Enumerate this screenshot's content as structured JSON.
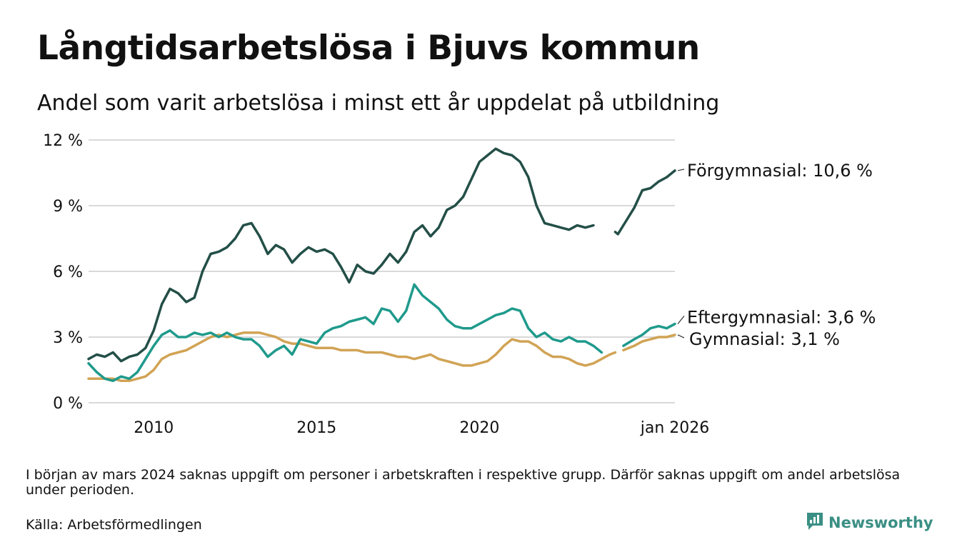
{
  "title": "Långtidsarbetslösa i Bjuvs kommun",
  "subtitle": "Andel som varit arbetslösa i minst ett år uppdelat på utbildning",
  "footnote": "I början av mars 2024 saknas uppgift om personer i arbetskraften i respektive grupp. Därför saknas uppgift om andel arbetslösa under perioden.",
  "source": "Källa: Arbetsförmedlingen",
  "brand": "Newsworthy",
  "colors": {
    "forgymnasial": "#234f47",
    "eftergymnasial": "#1f9a8c",
    "gymnasial": "#d1a354",
    "grid": "#d9d9d9",
    "brand": "#3a8f84"
  },
  "chart_data": {
    "type": "line",
    "title": "Långtidsarbetslösa i Bjuvs kommun",
    "xlabel": "",
    "ylabel": "",
    "xlim": [
      2008.0,
      2026.0
    ],
    "ylim": [
      0,
      12
    ],
    "y_ticks": [
      0,
      3,
      6,
      9,
      12
    ],
    "y_tick_labels": [
      "0 %",
      "3 %",
      "6 %",
      "9 %",
      "12 %"
    ],
    "x_ticks": [
      2010,
      2015,
      2020,
      2026.0
    ],
    "x_tick_labels": [
      "2010",
      "2015",
      "2020",
      "jan 2026"
    ],
    "gap": [
      2024.17,
      2024.42
    ],
    "series": [
      {
        "name": "Förgymnasial",
        "end_label": "Förgymnasial: 10,6 %",
        "color_key": "forgymnasial",
        "points": [
          [
            2008.0,
            2.0
          ],
          [
            2008.25,
            2.2
          ],
          [
            2008.5,
            2.1
          ],
          [
            2008.75,
            2.3
          ],
          [
            2009.0,
            1.9
          ],
          [
            2009.25,
            2.1
          ],
          [
            2009.5,
            2.2
          ],
          [
            2009.75,
            2.5
          ],
          [
            2010.0,
            3.3
          ],
          [
            2010.25,
            4.5
          ],
          [
            2010.5,
            5.2
          ],
          [
            2010.75,
            5.0
          ],
          [
            2011.0,
            4.6
          ],
          [
            2011.25,
            4.8
          ],
          [
            2011.5,
            6.0
          ],
          [
            2011.75,
            6.8
          ],
          [
            2012.0,
            6.9
          ],
          [
            2012.25,
            7.1
          ],
          [
            2012.5,
            7.5
          ],
          [
            2012.75,
            8.1
          ],
          [
            2013.0,
            8.2
          ],
          [
            2013.25,
            7.6
          ],
          [
            2013.5,
            6.8
          ],
          [
            2013.75,
            7.2
          ],
          [
            2014.0,
            7.0
          ],
          [
            2014.25,
            6.4
          ],
          [
            2014.5,
            6.8
          ],
          [
            2014.75,
            7.1
          ],
          [
            2015.0,
            6.9
          ],
          [
            2015.25,
            7.0
          ],
          [
            2015.5,
            6.8
          ],
          [
            2015.75,
            6.2
          ],
          [
            2016.0,
            5.5
          ],
          [
            2016.25,
            6.3
          ],
          [
            2016.5,
            6.0
          ],
          [
            2016.75,
            5.9
          ],
          [
            2017.0,
            6.3
          ],
          [
            2017.25,
            6.8
          ],
          [
            2017.5,
            6.4
          ],
          [
            2017.75,
            6.9
          ],
          [
            2018.0,
            7.8
          ],
          [
            2018.25,
            8.1
          ],
          [
            2018.5,
            7.6
          ],
          [
            2018.75,
            8.0
          ],
          [
            2019.0,
            8.8
          ],
          [
            2019.25,
            9.0
          ],
          [
            2019.5,
            9.4
          ],
          [
            2019.75,
            10.2
          ],
          [
            2020.0,
            11.0
          ],
          [
            2020.25,
            11.3
          ],
          [
            2020.5,
            11.6
          ],
          [
            2020.75,
            11.4
          ],
          [
            2021.0,
            11.3
          ],
          [
            2021.25,
            11.0
          ],
          [
            2021.5,
            10.3
          ],
          [
            2021.75,
            9.0
          ],
          [
            2022.0,
            8.2
          ],
          [
            2022.25,
            8.1
          ],
          [
            2022.5,
            8.0
          ],
          [
            2022.75,
            7.9
          ],
          [
            2023.0,
            8.1
          ],
          [
            2023.25,
            8.0
          ],
          [
            2023.5,
            8.1
          ],
          [
            2024.17,
            7.8
          ],
          [
            2024.25,
            7.7
          ],
          [
            2024.5,
            8.3
          ],
          [
            2024.75,
            8.9
          ],
          [
            2025.0,
            9.7
          ],
          [
            2025.25,
            9.8
          ],
          [
            2025.5,
            10.1
          ],
          [
            2025.75,
            10.3
          ],
          [
            2026.0,
            10.6
          ]
        ]
      },
      {
        "name": "Eftergymnasial",
        "end_label": "Eftergymnasial:  3,6 %",
        "color_key": "eftergymnasial",
        "points": [
          [
            2008.0,
            1.8
          ],
          [
            2008.25,
            1.4
          ],
          [
            2008.5,
            1.1
          ],
          [
            2008.75,
            1.0
          ],
          [
            2009.0,
            1.2
          ],
          [
            2009.25,
            1.1
          ],
          [
            2009.5,
            1.4
          ],
          [
            2009.75,
            2.0
          ],
          [
            2010.0,
            2.6
          ],
          [
            2010.25,
            3.1
          ],
          [
            2010.5,
            3.3
          ],
          [
            2010.75,
            3.0
          ],
          [
            2011.0,
            3.0
          ],
          [
            2011.25,
            3.2
          ],
          [
            2011.5,
            3.1
          ],
          [
            2011.75,
            3.2
          ],
          [
            2012.0,
            3.0
          ],
          [
            2012.25,
            3.2
          ],
          [
            2012.5,
            3.0
          ],
          [
            2012.75,
            2.9
          ],
          [
            2013.0,
            2.9
          ],
          [
            2013.25,
            2.6
          ],
          [
            2013.5,
            2.1
          ],
          [
            2013.75,
            2.4
          ],
          [
            2014.0,
            2.6
          ],
          [
            2014.25,
            2.2
          ],
          [
            2014.5,
            2.9
          ],
          [
            2014.75,
            2.8
          ],
          [
            2015.0,
            2.7
          ],
          [
            2015.25,
            3.2
          ],
          [
            2015.5,
            3.4
          ],
          [
            2015.75,
            3.5
          ],
          [
            2016.0,
            3.7
          ],
          [
            2016.25,
            3.8
          ],
          [
            2016.5,
            3.9
          ],
          [
            2016.75,
            3.6
          ],
          [
            2017.0,
            4.3
          ],
          [
            2017.25,
            4.2
          ],
          [
            2017.5,
            3.7
          ],
          [
            2017.75,
            4.2
          ],
          [
            2018.0,
            5.4
          ],
          [
            2018.25,
            4.9
          ],
          [
            2018.5,
            4.6
          ],
          [
            2018.75,
            4.3
          ],
          [
            2019.0,
            3.8
          ],
          [
            2019.25,
            3.5
          ],
          [
            2019.5,
            3.4
          ],
          [
            2019.75,
            3.4
          ],
          [
            2020.0,
            3.6
          ],
          [
            2020.25,
            3.8
          ],
          [
            2020.5,
            4.0
          ],
          [
            2020.75,
            4.1
          ],
          [
            2021.0,
            4.3
          ],
          [
            2021.25,
            4.2
          ],
          [
            2021.5,
            3.4
          ],
          [
            2021.75,
            3.0
          ],
          [
            2022.0,
            3.2
          ],
          [
            2022.25,
            2.9
          ],
          [
            2022.5,
            2.8
          ],
          [
            2022.75,
            3.0
          ],
          [
            2023.0,
            2.8
          ],
          [
            2023.25,
            2.8
          ],
          [
            2023.5,
            2.6
          ],
          [
            2023.75,
            2.3
          ],
          [
            2024.42,
            2.6
          ],
          [
            2024.75,
            2.9
          ],
          [
            2025.0,
            3.1
          ],
          [
            2025.25,
            3.4
          ],
          [
            2025.5,
            3.5
          ],
          [
            2025.75,
            3.4
          ],
          [
            2026.0,
            3.6
          ]
        ]
      },
      {
        "name": "Gymnasial",
        "end_label": "Gymnasial:  3,1 %",
        "color_key": "gymnasial",
        "points": [
          [
            2008.0,
            1.1
          ],
          [
            2008.25,
            1.1
          ],
          [
            2008.5,
            1.1
          ],
          [
            2008.75,
            1.1
          ],
          [
            2009.0,
            1.0
          ],
          [
            2009.25,
            1.0
          ],
          [
            2009.5,
            1.1
          ],
          [
            2009.75,
            1.2
          ],
          [
            2010.0,
            1.5
          ],
          [
            2010.25,
            2.0
          ],
          [
            2010.5,
            2.2
          ],
          [
            2010.75,
            2.3
          ],
          [
            2011.0,
            2.4
          ],
          [
            2011.25,
            2.6
          ],
          [
            2011.5,
            2.8
          ],
          [
            2011.75,
            3.0
          ],
          [
            2012.0,
            3.1
          ],
          [
            2012.25,
            3.0
          ],
          [
            2012.5,
            3.1
          ],
          [
            2012.75,
            3.2
          ],
          [
            2013.0,
            3.2
          ],
          [
            2013.25,
            3.2
          ],
          [
            2013.5,
            3.1
          ],
          [
            2013.75,
            3.0
          ],
          [
            2014.0,
            2.8
          ],
          [
            2014.25,
            2.7
          ],
          [
            2014.5,
            2.7
          ],
          [
            2014.75,
            2.6
          ],
          [
            2015.0,
            2.5
          ],
          [
            2015.25,
            2.5
          ],
          [
            2015.5,
            2.5
          ],
          [
            2015.75,
            2.4
          ],
          [
            2016.0,
            2.4
          ],
          [
            2016.25,
            2.4
          ],
          [
            2016.5,
            2.3
          ],
          [
            2016.75,
            2.3
          ],
          [
            2017.0,
            2.3
          ],
          [
            2017.25,
            2.2
          ],
          [
            2017.5,
            2.1
          ],
          [
            2017.75,
            2.1
          ],
          [
            2018.0,
            2.0
          ],
          [
            2018.25,
            2.1
          ],
          [
            2018.5,
            2.2
          ],
          [
            2018.75,
            2.0
          ],
          [
            2019.0,
            1.9
          ],
          [
            2019.25,
            1.8
          ],
          [
            2019.5,
            1.7
          ],
          [
            2019.75,
            1.7
          ],
          [
            2020.0,
            1.8
          ],
          [
            2020.25,
            1.9
          ],
          [
            2020.5,
            2.2
          ],
          [
            2020.75,
            2.6
          ],
          [
            2021.0,
            2.9
          ],
          [
            2021.25,
            2.8
          ],
          [
            2021.5,
            2.8
          ],
          [
            2021.75,
            2.6
          ],
          [
            2022.0,
            2.3
          ],
          [
            2022.25,
            2.1
          ],
          [
            2022.5,
            2.1
          ],
          [
            2022.75,
            2.0
          ],
          [
            2023.0,
            1.8
          ],
          [
            2023.25,
            1.7
          ],
          [
            2023.5,
            1.8
          ],
          [
            2023.75,
            2.0
          ],
          [
            2024.0,
            2.2
          ],
          [
            2024.17,
            2.3
          ],
          [
            2024.42,
            2.4
          ],
          [
            2024.75,
            2.6
          ],
          [
            2025.0,
            2.8
          ],
          [
            2025.25,
            2.9
          ],
          [
            2025.5,
            3.0
          ],
          [
            2025.75,
            3.0
          ],
          [
            2026.0,
            3.1
          ]
        ]
      }
    ],
    "end_label_y": {
      "Förgymnasial": 10.6,
      "Eftergymnasial": 3.9,
      "Gymnasial": 2.9
    }
  }
}
